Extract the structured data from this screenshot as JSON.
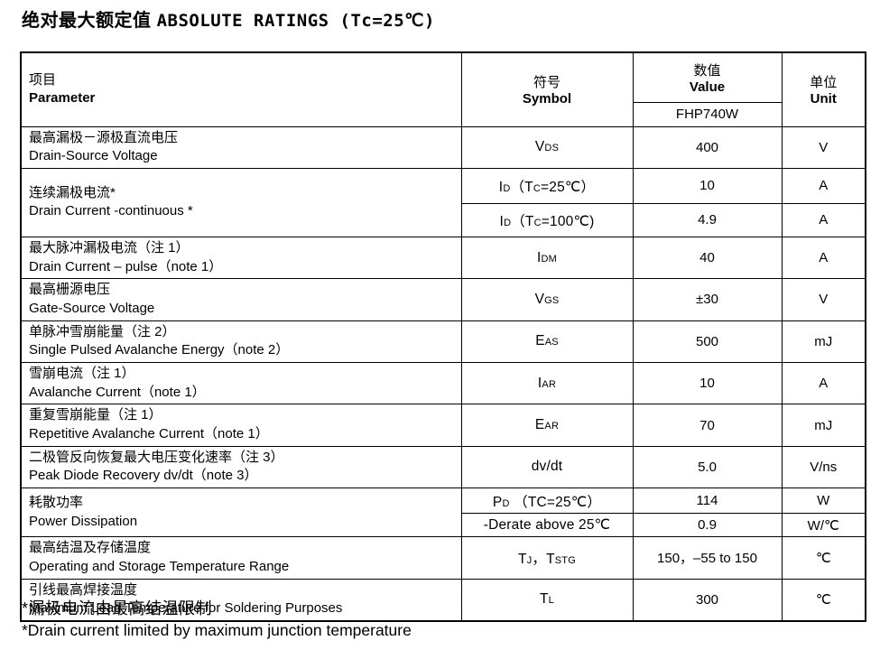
{
  "title": {
    "zh": "绝对最大额定值",
    "en": "ABSOLUTE RATINGS (Tc=25℃)"
  },
  "table": {
    "header": {
      "param_zh": "项目",
      "param_en": "Parameter",
      "symbol_zh": "符号",
      "symbol_en": "Symbol",
      "value_zh": "数值",
      "value_en": "Value",
      "value_sub": "FHP740W",
      "unit_zh": "单位",
      "unit_en": "Unit"
    },
    "rows": [
      {
        "param_zh": "最高漏极－源极直流电压",
        "param_en": "Drain-Source Voltage",
        "symbol": [
          {
            "t": "V"
          },
          {
            "t": "DS",
            "small": 1
          }
        ],
        "value": "400",
        "unit": "V"
      },
      {
        "param_zh": "连续漏极电流*",
        "param_en": "Drain Current -continuous *",
        "sub": [
          {
            "symbol": [
              {
                "t": "I"
              },
              {
                "t": "D",
                "small": 1
              },
              {
                "t": "（T"
              },
              {
                "t": "C",
                "small": 1
              },
              {
                "t": "=25℃）"
              }
            ],
            "value": "10",
            "unit": "A"
          },
          {
            "symbol": [
              {
                "t": "I"
              },
              {
                "t": "D",
                "small": 1
              },
              {
                "t": "（T"
              },
              {
                "t": "C",
                "small": 1
              },
              {
                "t": "=100℃)"
              }
            ],
            "value": "4.9",
            "unit": "A"
          }
        ]
      },
      {
        "param_zh": "最大脉冲漏极电流（注 1）",
        "param_en": "Drain Current – pulse（note 1）",
        "symbol": [
          {
            "t": "I"
          },
          {
            "t": "DM",
            "small": 1
          }
        ],
        "value": "40",
        "unit": "A"
      },
      {
        "param_zh": "最高栅源电压",
        "param_en": "Gate-Source Voltage",
        "symbol": [
          {
            "t": "V"
          },
          {
            "t": "GS",
            "small": 1
          }
        ],
        "value": "±30",
        "unit": "V"
      },
      {
        "param_zh": "单脉冲雪崩能量（注 2）",
        "param_en": "Single Pulsed Avalanche Energy（note 2）",
        "symbol": [
          {
            "t": "E"
          },
          {
            "t": "AS",
            "small": 1
          }
        ],
        "value": "500",
        "unit": "mJ"
      },
      {
        "param_zh": "雪崩电流（注 1）",
        "param_en": "Avalanche Current（note 1）",
        "symbol": [
          {
            "t": "I"
          },
          {
            "t": "AR",
            "small": 1
          }
        ],
        "value": "10",
        "unit": "A"
      },
      {
        "param_zh": "重复雪崩能量（注 1）",
        "param_en": "Repetitive Avalanche Current（note 1）",
        "symbol": [
          {
            "t": "E"
          },
          {
            "t": "AR",
            "small": 1
          }
        ],
        "value": "70",
        "unit": "mJ"
      },
      {
        "param_zh": "二极管反向恢复最大电压变化速率（注 3）",
        "param_en": " Peak Diode Recovery dv/dt（note 3）",
        "symbol": [
          {
            "t": "dv/dt"
          }
        ],
        "value": "5.0",
        "unit": "V/ns"
      },
      {
        "param_zh": "耗散功率",
        "param_en": "Power Dissipation",
        "sub": [
          {
            "symbol": [
              {
                "t": "P"
              },
              {
                "t": "D",
                "small": 1
              },
              {
                "t": " （TC=25℃）"
              }
            ],
            "value": "114",
            "unit": "W"
          },
          {
            "symbol": [
              {
                "t": "-Derate above 25℃"
              }
            ],
            "value": "0.9",
            "unit": "W/℃"
          }
        ]
      },
      {
        "param_zh": "最高结温及存储温度",
        "param_en": "Operating and Storage Temperature Range",
        "symbol": [
          {
            "t": "T"
          },
          {
            "t": "J",
            "small": 1
          },
          {
            "t": "，T"
          },
          {
            "t": "STG",
            "small": 1
          }
        ],
        "value": "150，–55 to 150",
        "unit": "℃"
      },
      {
        "param_zh": "引线最高焊接温度",
        "param_en": "Maximum Lead Temperature for Soldering Purposes",
        "symbol": [
          {
            "t": "T"
          },
          {
            "t": "L",
            "small": 1
          }
        ],
        "value": "300",
        "unit": "℃"
      }
    ]
  },
  "footnotes": {
    "zh": "*漏极电流由最高结温限制",
    "en": "*Drain current limited by maximum junction temperature"
  }
}
